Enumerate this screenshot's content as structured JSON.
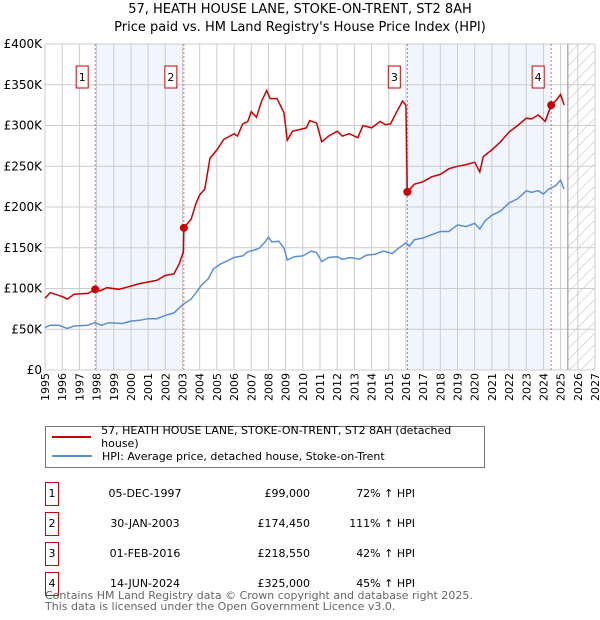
{
  "chart_data": {
    "type": "line",
    "title": "57, HEATH HOUSE LANE, STOKE-ON-TRENT, ST2 8AH",
    "subtitle": "Price paid vs. HM Land Registry's House Price Index (HPI)",
    "xlim": [
      1995,
      2027
    ],
    "ylim": [
      0,
      400000
    ],
    "y_ticks": [
      {
        "v": 0,
        "label": "£0"
      },
      {
        "v": 50000,
        "label": "£50K"
      },
      {
        "v": 100000,
        "label": "£100K"
      },
      {
        "v": 150000,
        "label": "£150K"
      },
      {
        "v": 200000,
        "label": "£200K"
      },
      {
        "v": 250000,
        "label": "£250K"
      },
      {
        "v": 300000,
        "label": "£300K"
      },
      {
        "v": 350000,
        "label": "£350K"
      },
      {
        "v": 400000,
        "label": "£400K"
      }
    ],
    "x_ticks": [
      "1995",
      "1996",
      "1997",
      "1998",
      "1999",
      "2000",
      "2001",
      "2002",
      "2003",
      "2004",
      "2005",
      "2006",
      "2007",
      "2008",
      "2009",
      "2010",
      "2011",
      "2012",
      "2013",
      "2014",
      "2015",
      "2016",
      "2017",
      "2018",
      "2019",
      "2020",
      "2021",
      "2022",
      "2023",
      "2024",
      "2025",
      "2026",
      "2027"
    ],
    "grid": true,
    "forecast_hatch_from": 2025.42,
    "series": [
      {
        "name": "57, HEATH HOUSE LANE, STOKE-ON-TRENT, ST2 8AH (detached house)",
        "color": "#cc0000",
        "x": [
          1995.0,
          1995.3,
          1996.0,
          1996.3,
          1996.7,
          1997.5,
          1997.92,
          1998.2,
          1998.6,
          1999.3,
          2000.0,
          2000.5,
          2001.0,
          2001.5,
          2002.0,
          2002.5,
          2002.8,
          2003.05,
          2003.08,
          2003.5,
          2003.8,
          2004.0,
          2004.3,
          2004.6,
          2005.0,
          2005.4,
          2006.0,
          2006.2,
          2006.5,
          2006.8,
          2007.0,
          2007.3,
          2007.6,
          2007.9,
          2008.1,
          2008.5,
          2008.9,
          2009.1,
          2009.4,
          2009.8,
          2010.2,
          2010.4,
          2010.8,
          2011.1,
          2011.5,
          2012.0,
          2012.3,
          2012.7,
          2013.2,
          2013.5,
          2014.0,
          2014.5,
          2014.8,
          2015.1,
          2015.5,
          2015.8,
          2016.0,
          2016.08,
          2016.5,
          2017.0,
          2017.5,
          2018.0,
          2018.5,
          2019.0,
          2019.5,
          2020.0,
          2020.3,
          2020.5,
          2021.0,
          2021.5,
          2022.0,
          2022.5,
          2023.0,
          2023.3,
          2023.7,
          2024.1,
          2024.45,
          2024.7,
          2025.0,
          2025.2
        ],
        "y": [
          88000,
          95000,
          90000,
          87000,
          93000,
          94000,
          99000,
          97000,
          101000,
          99000,
          103000,
          106000,
          108000,
          110000,
          116000,
          118000,
          130000,
          145000,
          174450,
          185000,
          205000,
          215000,
          222000,
          260000,
          270000,
          283000,
          290000,
          287000,
          302000,
          305000,
          317000,
          310000,
          330000,
          343000,
          333000,
          333000,
          316000,
          282000,
          293000,
          295000,
          297000,
          306000,
          303000,
          280000,
          287000,
          293000,
          287000,
          290000,
          285000,
          300000,
          297000,
          305000,
          301000,
          302000,
          318000,
          330000,
          325000,
          218550,
          228000,
          231000,
          237000,
          240000,
          247000,
          250000,
          252000,
          255000,
          243000,
          262000,
          270000,
          280000,
          292000,
          300000,
          309000,
          308000,
          313000,
          305000,
          325000,
          330000,
          338000,
          325000
        ]
      },
      {
        "name": "HPI: Average price, detached house, Stoke-on-Trent",
        "color": "#5b8fd4",
        "x": [
          1995.0,
          1995.3,
          1995.8,
          1996.3,
          1996.7,
          1997.5,
          1997.9,
          1998.3,
          1998.7,
          1999.5,
          2000.0,
          2000.5,
          2001.0,
          2001.5,
          2002.0,
          2002.5,
          2003.0,
          2003.5,
          2003.8,
          2004.1,
          2004.5,
          2004.8,
          2005.2,
          2005.6,
          2006.0,
          2006.5,
          2006.8,
          2007.3,
          2007.5,
          2007.8,
          2008.0,
          2008.2,
          2008.6,
          2008.9,
          2009.1,
          2009.5,
          2010.0,
          2010.5,
          2010.8,
          2011.1,
          2011.5,
          2012.0,
          2012.3,
          2012.8,
          2013.3,
          2013.7,
          2014.2,
          2014.7,
          2015.2,
          2015.6,
          2016.0,
          2016.2,
          2016.5,
          2017.0,
          2017.5,
          2018.0,
          2018.5,
          2019.0,
          2019.5,
          2020.0,
          2020.3,
          2020.6,
          2021.0,
          2021.5,
          2022.0,
          2022.5,
          2023.0,
          2023.3,
          2023.7,
          2024.0,
          2024.3,
          2024.7,
          2025.0,
          2025.2
        ],
        "y": [
          52000,
          55000,
          55000,
          51000,
          54000,
          55000,
          58000,
          55000,
          58000,
          57000,
          60000,
          61000,
          63000,
          63000,
          67000,
          70000,
          80000,
          87000,
          95000,
          104000,
          112000,
          124000,
          130000,
          134000,
          138000,
          140000,
          145000,
          148000,
          150000,
          157000,
          163000,
          157000,
          158000,
          150000,
          135000,
          139000,
          140000,
          146000,
          144000,
          133000,
          138000,
          139000,
          136000,
          138000,
          136000,
          141000,
          142000,
          146000,
          143000,
          150000,
          156000,
          152000,
          160000,
          162000,
          166000,
          170000,
          170000,
          178000,
          176000,
          180000,
          173000,
          183000,
          190000,
          195000,
          205000,
          210000,
          220000,
          218000,
          220000,
          216000,
          222000,
          226000,
          233000,
          222000
        ]
      }
    ],
    "sales": [
      {
        "n": "1",
        "date": "05-DEC-1997",
        "x": 1997.92,
        "price": "£99,000",
        "value": 99000,
        "hpi": "72% ↑ HPI"
      },
      {
        "n": "2",
        "date": "30-JAN-2003",
        "x": 2003.08,
        "price": "£174,450",
        "value": 174450,
        "hpi": "111% ↑ HPI"
      },
      {
        "n": "3",
        "date": "01-FEB-2016",
        "x": 2016.08,
        "price": "£218,550",
        "value": 218550,
        "hpi": "42% ↑ HPI"
      },
      {
        "n": "4",
        "date": "14-JUN-2024",
        "x": 2024.45,
        "price": "£325,000",
        "value": 325000,
        "hpi": "45% ↑ HPI"
      }
    ]
  },
  "legend": {
    "red": "57, HEATH HOUSE LANE, STOKE-ON-TRENT, ST2 8AH (detached house)",
    "blue": "HPI: Average price, detached house, Stoke-on-Trent"
  },
  "footer": {
    "line1": "Contains HM Land Registry data © Crown copyright and database right 2025.",
    "line2": "This data is licensed under the Open Government Licence v3.0."
  }
}
